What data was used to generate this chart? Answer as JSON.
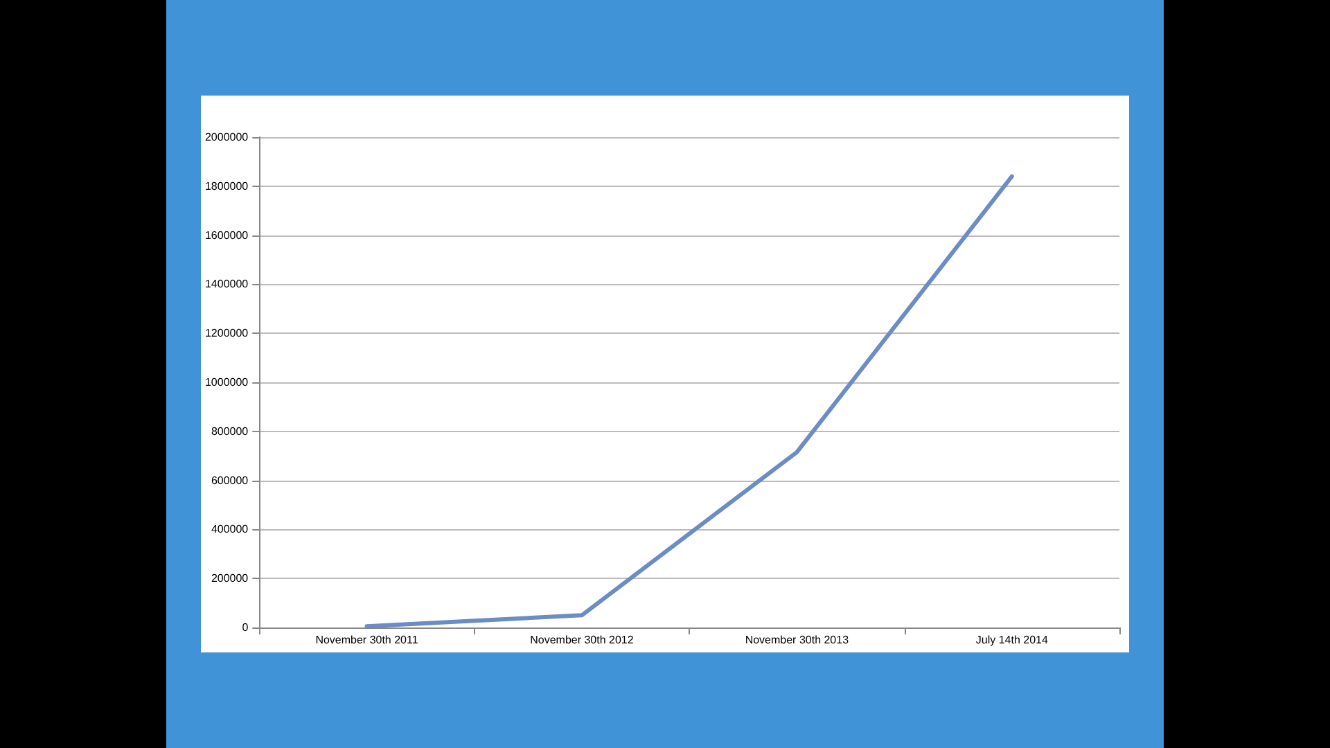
{
  "chart_data": {
    "type": "line",
    "categories": [
      "November 30th 2011",
      "November 30th 2012",
      "November 30th 2013",
      "July 14th 2014"
    ],
    "values": [
      5000,
      50000,
      715000,
      1840000
    ],
    "color": "#6b8cc4",
    "ylim": [
      0,
      2000000
    ],
    "yticks": [
      0,
      200000,
      400000,
      600000,
      800000,
      1000000,
      1200000,
      1400000,
      1600000,
      1800000,
      2000000
    ],
    "grid": "y",
    "marker": "none",
    "line_style": "solid"
  }
}
